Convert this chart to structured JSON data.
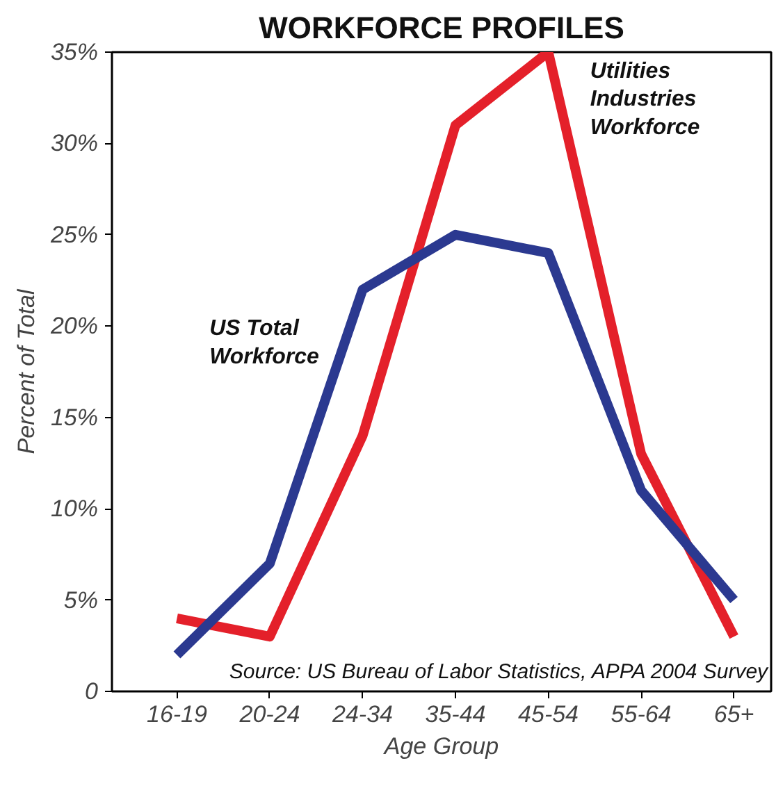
{
  "chart_data": {
    "type": "line",
    "title": "WORKFORCE PROFILES",
    "xlabel": "Age Group",
    "ylabel": "Percent of Total",
    "categories": [
      "16-19",
      "20-24",
      "24-34",
      "35-44",
      "45-54",
      "55-64",
      "65+"
    ],
    "series": [
      {
        "name": "Utilities\nIndustries\nWorkforce",
        "color": "#e4202a",
        "values": [
          4,
          3,
          14,
          31,
          35,
          13,
          3
        ]
      },
      {
        "name": "US Total\nWorkforce",
        "color": "#2b3990",
        "values": [
          2,
          7,
          22,
          25,
          24,
          11,
          5
        ]
      }
    ],
    "ylim": [
      0,
      35
    ],
    "yticks": [
      0,
      {
        "value": 5,
        "label": "5%"
      },
      {
        "value": 10,
        "label": "10%"
      },
      {
        "value": 15,
        "label": "15%"
      },
      {
        "value": 20,
        "label": "20%"
      },
      {
        "value": 25,
        "label": "25%"
      },
      {
        "value": 30,
        "label": "30%"
      },
      {
        "value": 35,
        "label": "35%"
      }
    ],
    "annotations": [
      "Source: US Bureau of Labor Statistics, APPA 2004 Survey"
    ],
    "grid": false,
    "marker": "none",
    "line_style": "solid"
  }
}
